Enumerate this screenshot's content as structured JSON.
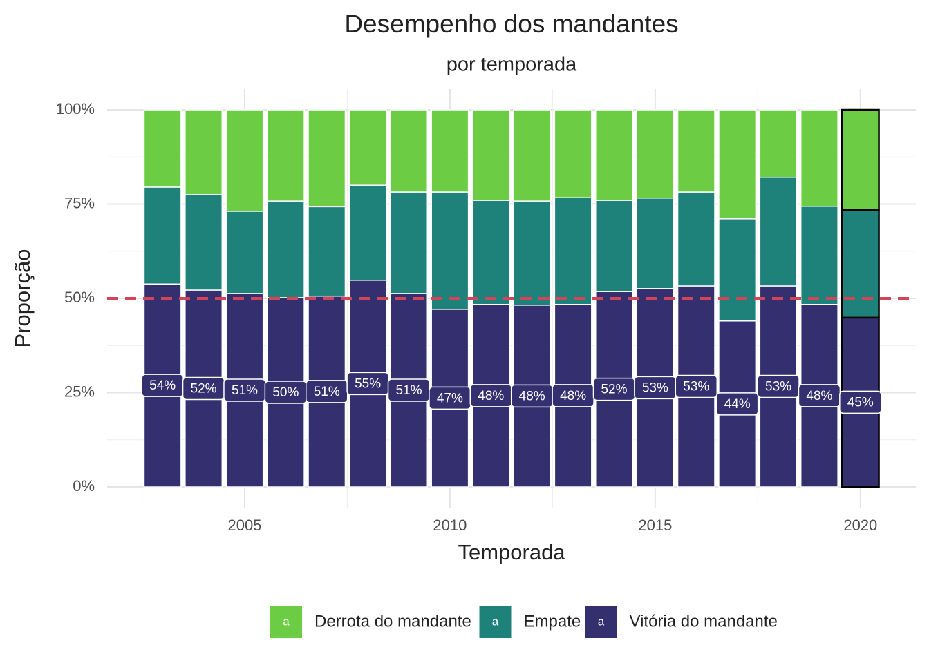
{
  "chart_data": {
    "type": "stacked_bar",
    "title": "Desempenho dos mandantes",
    "subtitle": "por temporada",
    "x_label": "Temporada",
    "y_label": "Proporção",
    "x": [
      2003,
      2004,
      2005,
      2006,
      2007,
      2008,
      2009,
      2010,
      2011,
      2012,
      2013,
      2014,
      2015,
      2016,
      2017,
      2018,
      2019,
      2020
    ],
    "series": [
      {
        "name": "Derrota do mandante",
        "color": "#6ccd45",
        "values": [
          20.5,
          22.5,
          26.9,
          24.2,
          25.7,
          20.0,
          21.8,
          21.8,
          24.0,
          24.2,
          23.3,
          24.0,
          23.4,
          21.8,
          28.9,
          17.9,
          25.6,
          26.6
        ]
      },
      {
        "name": "Empate",
        "color": "#1f827a",
        "values": [
          25.7,
          25.3,
          21.8,
          25.6,
          23.7,
          25.2,
          26.9,
          31.1,
          27.6,
          27.6,
          28.3,
          24.2,
          24.0,
          24.9,
          27.1,
          28.8,
          26.0,
          28.5
        ]
      },
      {
        "name": "Vitória do mandante",
        "color": "#34306f",
        "values": [
          53.8,
          52.2,
          51.3,
          50.2,
          50.6,
          54.8,
          51.3,
          47.1,
          48.4,
          48.2,
          48.4,
          51.8,
          52.6,
          53.3,
          44.0,
          53.3,
          48.4,
          44.9
        ],
        "value_labels": [
          "54%",
          "52%",
          "51%",
          "50%",
          "51%",
          "55%",
          "51%",
          "47%",
          "48%",
          "48%",
          "48%",
          "52%",
          "53%",
          "53%",
          "44%",
          "53%",
          "48%",
          "45%"
        ]
      }
    ],
    "xlim": [
      2001.65,
      2021.35
    ],
    "xticks": [
      2005,
      2010,
      2015,
      2020
    ],
    "ylim": [
      0,
      100
    ],
    "yticks": [
      {
        "value": 0,
        "label": "0%"
      },
      {
        "value": 25,
        "label": "25%"
      },
      {
        "value": 50,
        "label": "50%"
      },
      {
        "value": 75,
        "label": "75%"
      },
      {
        "value": 100,
        "label": "100%"
      }
    ],
    "hline": {
      "value": 50,
      "color": "#d2445a"
    },
    "highlight_x": 2020,
    "grid": true,
    "legend_position": "bottom",
    "legend_key_glyph": "a"
  }
}
